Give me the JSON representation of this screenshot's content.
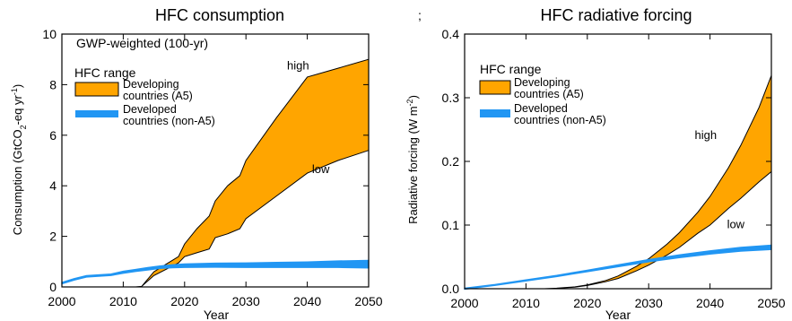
{
  "figure": {
    "stray_mark": ";"
  },
  "charts": [
    {
      "id": "consumption",
      "title": "HFC consumption",
      "note": "GWP-weighted (100-yr)",
      "xlabel": "Year",
      "ylabel_main": "Consumption (GtCO",
      "ylabel_sub": "2",
      "ylabel_mid": "-eq yr",
      "ylabel_sup": "-1",
      "ylabel_end": ")",
      "legend_title": "HFC range",
      "legend": [
        {
          "line1": "Developing",
          "line2": "countries (A5)"
        },
        {
          "line1": "Developed",
          "line2": "countries (non-A5)"
        }
      ],
      "annotations": [
        {
          "text": "high",
          "x": 2038.5,
          "y": 8.6
        },
        {
          "text": "low",
          "x": 2042.2,
          "y": 4.5
        }
      ]
    },
    {
      "id": "forcing",
      "title": "HFC radiative forcing",
      "xlabel": "Year",
      "ylabel_main": "Radiative forcing (W m",
      "ylabel_sup": "-2",
      "ylabel_end": ")",
      "legend_title": "HFC range",
      "legend": [
        {
          "line1": "Developing",
          "line2": "countries (A5)"
        },
        {
          "line1": "Developed",
          "line2": "countries (non-A5)"
        }
      ],
      "annotations": [
        {
          "text": "high",
          "x": 2039.3,
          "y": 0.235
        },
        {
          "text": "low",
          "x": 2044.2,
          "y": 0.095
        }
      ]
    }
  ],
  "colors": {
    "developing": "#FFA500",
    "developed": "#2196F3",
    "edge": "#000000"
  },
  "chart_data": [
    {
      "type": "area",
      "title": "HFC consumption",
      "xlabel": "Year",
      "ylabel": "Consumption (GtCO2-eq yr-1)",
      "xlim": [
        2000,
        2050
      ],
      "ylim": [
        0,
        10
      ],
      "xticks": [
        2000,
        2010,
        2020,
        2030,
        2040,
        2050
      ],
      "yticks": [
        0,
        2,
        4,
        6,
        8,
        10
      ],
      "series": [
        {
          "name": "Developing countries (A5)",
          "kind": "range",
          "x": [
            2012,
            2013,
            2015,
            2017,
            2019,
            2020,
            2022,
            2024,
            2025,
            2027,
            2029,
            2030,
            2035,
            2040,
            2045,
            2050
          ],
          "high": [
            0,
            0.02,
            0.6,
            0.9,
            1.2,
            1.7,
            2.3,
            2.8,
            3.4,
            4.0,
            4.4,
            5.0,
            6.7,
            8.3,
            8.65,
            9.0
          ],
          "low": [
            0,
            0.02,
            0.45,
            0.7,
            0.95,
            1.2,
            1.35,
            1.5,
            1.95,
            2.1,
            2.3,
            2.7,
            3.6,
            4.5,
            5.0,
            5.4
          ]
        },
        {
          "name": "Developed countries (non-A5)",
          "kind": "band",
          "x": [
            2000,
            2002,
            2004,
            2006,
            2008,
            2010,
            2012,
            2014,
            2016,
            2018,
            2020,
            2025,
            2030,
            2035,
            2040,
            2045,
            2050
          ],
          "y": [
            0.15,
            0.3,
            0.42,
            0.45,
            0.48,
            0.58,
            0.65,
            0.72,
            0.78,
            0.82,
            0.84,
            0.86,
            0.86,
            0.87,
            0.88,
            0.9,
            0.9
          ],
          "width": [
            0.03,
            0.03,
            0.03,
            0.03,
            0.03,
            0.04,
            0.04,
            0.05,
            0.05,
            0.06,
            0.07,
            0.08,
            0.09,
            0.1,
            0.11,
            0.13,
            0.15
          ]
        }
      ]
    },
    {
      "type": "area",
      "title": "HFC radiative forcing",
      "xlabel": "Year",
      "ylabel": "Radiative forcing (W m-2)",
      "xlim": [
        2000,
        2050
      ],
      "ylim": [
        0,
        0.4
      ],
      "xticks": [
        2000,
        2010,
        2020,
        2030,
        2040,
        2050
      ],
      "yticks": [
        0.0,
        0.1,
        0.2,
        0.3,
        0.4
      ],
      "series": [
        {
          "name": "Developing countries (A5)",
          "kind": "range",
          "x": [
            2013,
            2015,
            2018,
            2020,
            2023,
            2025,
            2028,
            2030,
            2033,
            2035,
            2038,
            2040,
            2043,
            2045,
            2048,
            2050
          ],
          "high": [
            0,
            0.0008,
            0.003,
            0.006,
            0.013,
            0.02,
            0.035,
            0.047,
            0.07,
            0.088,
            0.12,
            0.145,
            0.19,
            0.225,
            0.285,
            0.335
          ],
          "low": [
            0,
            0.0006,
            0.0025,
            0.005,
            0.011,
            0.016,
            0.028,
            0.037,
            0.053,
            0.065,
            0.087,
            0.1,
            0.126,
            0.142,
            0.168,
            0.184
          ]
        },
        {
          "name": "Developed countries (non-A5)",
          "kind": "band",
          "x": [
            2000,
            2005,
            2010,
            2015,
            2020,
            2025,
            2030,
            2035,
            2040,
            2045,
            2050
          ],
          "y": [
            0.0,
            0.006,
            0.013,
            0.02,
            0.028,
            0.036,
            0.044,
            0.051,
            0.057,
            0.062,
            0.065
          ],
          "width": [
            0.0008,
            0.0008,
            0.0009,
            0.001,
            0.0012,
            0.0015,
            0.0018,
            0.0022,
            0.0026,
            0.003,
            0.0035
          ]
        }
      ]
    }
  ]
}
